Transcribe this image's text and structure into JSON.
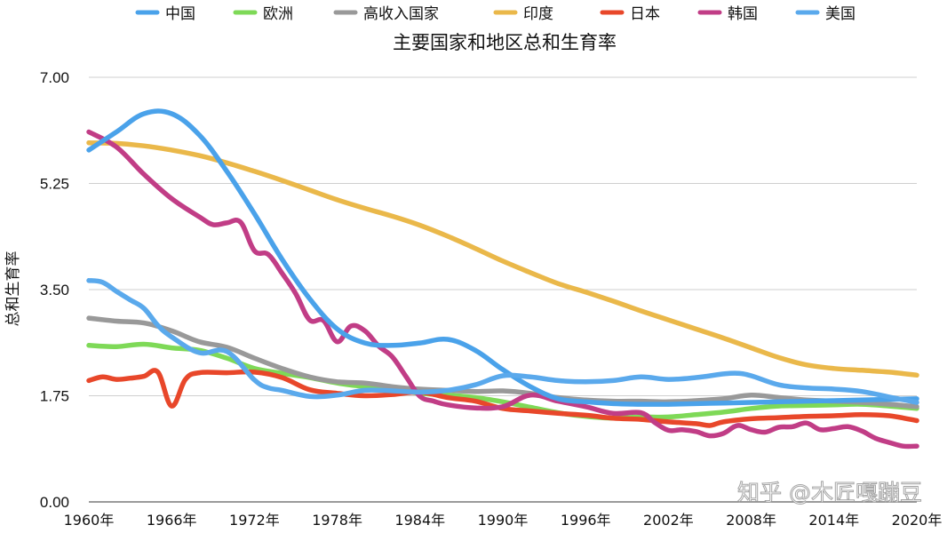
{
  "chart_data": {
    "type": "line",
    "title": "主要国家和地区总和生育率",
    "ylabel": "总和生育率",
    "xlabel": "",
    "ylim": [
      0,
      7
    ],
    "yticks": [
      "0.00",
      "1.75",
      "3.50",
      "5.25",
      "7.00"
    ],
    "ytick_values": [
      0,
      1.75,
      3.5,
      5.25,
      7
    ],
    "xlim": [
      1960,
      2020
    ],
    "xticks": [
      "1960年",
      "1966年",
      "1972年",
      "1978年",
      "1984年",
      "1990年",
      "1996年",
      "2002年",
      "2008年",
      "2014年",
      "2020年"
    ],
    "xtick_values": [
      1960,
      1966,
      1972,
      1978,
      1984,
      1990,
      1996,
      2002,
      2008,
      2014,
      2020
    ],
    "grid": true,
    "legend_position": "top",
    "watermark": "知乎 @木匠嘎蹦豆",
    "series": [
      {
        "name": "欧洲",
        "color": "#7ed957",
        "x": [
          1960,
          1962,
          1964,
          1966,
          1968,
          1970,
          1972,
          1974,
          1976,
          1978,
          1980,
          1982,
          1984,
          1986,
          1988,
          1990,
          1992,
          1994,
          1996,
          1998,
          2000,
          2002,
          2004,
          2006,
          2008,
          2010,
          2012,
          2014,
          2016,
          2018,
          2020
        ],
        "values": [
          2.58,
          2.56,
          2.6,
          2.54,
          2.5,
          2.37,
          2.2,
          2.12,
          2.05,
          1.96,
          1.9,
          1.85,
          1.79,
          1.76,
          1.72,
          1.65,
          1.56,
          1.47,
          1.41,
          1.38,
          1.4,
          1.4,
          1.44,
          1.48,
          1.54,
          1.58,
          1.59,
          1.6,
          1.61,
          1.58,
          1.54
        ]
      },
      {
        "name": "高收入国家",
        "color": "#999999",
        "x": [
          1960,
          1962,
          1964,
          1966,
          1968,
          1970,
          1972,
          1974,
          1976,
          1978,
          1980,
          1982,
          1984,
          1986,
          1988,
          1990,
          1992,
          1994,
          1996,
          1998,
          2000,
          2002,
          2004,
          2006,
          2008,
          2010,
          2012,
          2014,
          2016,
          2018,
          2020
        ],
        "values": [
          3.03,
          2.98,
          2.95,
          2.82,
          2.64,
          2.55,
          2.37,
          2.2,
          2.06,
          1.98,
          1.96,
          1.9,
          1.86,
          1.84,
          1.82,
          1.83,
          1.79,
          1.72,
          1.68,
          1.66,
          1.66,
          1.65,
          1.67,
          1.7,
          1.76,
          1.72,
          1.68,
          1.66,
          1.64,
          1.61,
          1.57
        ]
      },
      {
        "name": "印度",
        "color": "#eab84a",
        "x": [
          1960,
          1962,
          1964,
          1966,
          1968,
          1970,
          1972,
          1974,
          1976,
          1978,
          1980,
          1982,
          1984,
          1986,
          1988,
          1990,
          1992,
          1994,
          1996,
          1998,
          2000,
          2002,
          2004,
          2006,
          2008,
          2010,
          2012,
          2014,
          2016,
          2018,
          2020
        ],
        "values": [
          5.92,
          5.91,
          5.87,
          5.8,
          5.71,
          5.59,
          5.45,
          5.3,
          5.14,
          4.98,
          4.84,
          4.71,
          4.56,
          4.38,
          4.18,
          3.97,
          3.78,
          3.6,
          3.46,
          3.31,
          3.15,
          3.0,
          2.85,
          2.7,
          2.54,
          2.38,
          2.26,
          2.2,
          2.17,
          2.14,
          2.09
        ]
      },
      {
        "name": "日本",
        "color": "#e8472a",
        "x": [
          1960,
          1961,
          1962,
          1963,
          1964,
          1965,
          1966,
          1967,
          1968,
          1970,
          1972,
          1974,
          1976,
          1978,
          1980,
          1982,
          1984,
          1986,
          1988,
          1990,
          1992,
          1994,
          1996,
          1998,
          2000,
          2002,
          2004,
          2005,
          2006,
          2008,
          2010,
          2012,
          2014,
          2016,
          2018,
          2020
        ],
        "values": [
          2.0,
          2.06,
          2.02,
          2.04,
          2.07,
          2.14,
          1.58,
          2.02,
          2.13,
          2.13,
          2.14,
          2.05,
          1.85,
          1.79,
          1.75,
          1.77,
          1.81,
          1.72,
          1.66,
          1.54,
          1.5,
          1.46,
          1.43,
          1.38,
          1.36,
          1.32,
          1.29,
          1.26,
          1.32,
          1.37,
          1.39,
          1.41,
          1.42,
          1.44,
          1.42,
          1.34
        ]
      },
      {
        "name": "韩国",
        "color": "#c13d86",
        "x": [
          1960,
          1962,
          1964,
          1966,
          1968,
          1969,
          1970,
          1971,
          1972,
          1973,
          1974,
          1975,
          1976,
          1977,
          1978,
          1979,
          1980,
          1981,
          1982,
          1983,
          1984,
          1985,
          1986,
          1988,
          1990,
          1992,
          1994,
          1996,
          1998,
          2000,
          2001,
          2002,
          2003,
          2004,
          2005,
          2006,
          2007,
          2008,
          2009,
          2010,
          2011,
          2012,
          2013,
          2014,
          2015,
          2016,
          2017,
          2018,
          2019,
          2020
        ],
        "values": [
          6.1,
          5.85,
          5.4,
          5.0,
          4.7,
          4.57,
          4.6,
          4.61,
          4.14,
          4.08,
          3.77,
          3.43,
          3.0,
          2.99,
          2.64,
          2.9,
          2.82,
          2.57,
          2.39,
          2.06,
          1.74,
          1.66,
          1.6,
          1.55,
          1.57,
          1.76,
          1.66,
          1.57,
          1.46,
          1.47,
          1.31,
          1.18,
          1.19,
          1.16,
          1.09,
          1.13,
          1.26,
          1.19,
          1.15,
          1.23,
          1.24,
          1.3,
          1.19,
          1.21,
          1.24,
          1.17,
          1.05,
          0.98,
          0.92,
          0.92
        ]
      },
      {
        "name": "中国",
        "color": "#4aa2ea",
        "x": [
          1960,
          1962,
          1964,
          1966,
          1968,
          1970,
          1972,
          1974,
          1976,
          1978,
          1980,
          1982,
          1984,
          1986,
          1988,
          1990,
          1992,
          1994,
          1996,
          1998,
          2000,
          2002,
          2004,
          2006,
          2008,
          2010,
          2012,
          2014,
          2016,
          2018,
          2020
        ],
        "values": [
          5.8,
          6.1,
          6.4,
          6.4,
          6.05,
          5.45,
          4.75,
          4.0,
          3.35,
          2.85,
          2.62,
          2.58,
          2.62,
          2.68,
          2.5,
          2.18,
          1.9,
          1.7,
          1.65,
          1.62,
          1.61,
          1.61,
          1.62,
          1.63,
          1.64,
          1.65,
          1.66,
          1.67,
          1.68,
          1.69,
          1.7
        ]
      },
      {
        "name": "美国",
        "color": "#5aa9ec",
        "x": [
          1960,
          1961,
          1962,
          1963,
          1964,
          1965,
          1966,
          1968,
          1970,
          1972,
          1973,
          1974,
          1976,
          1978,
          1980,
          1982,
          1984,
          1986,
          1988,
          1990,
          1992,
          1994,
          1996,
          1998,
          2000,
          2002,
          2004,
          2006,
          2007,
          2008,
          2010,
          2012,
          2014,
          2016,
          2018,
          2020
        ],
        "values": [
          3.65,
          3.62,
          3.47,
          3.33,
          3.19,
          2.91,
          2.72,
          2.46,
          2.48,
          2.01,
          1.88,
          1.84,
          1.74,
          1.76,
          1.84,
          1.83,
          1.81,
          1.84,
          1.93,
          2.08,
          2.06,
          2.0,
          1.98,
          2.0,
          2.06,
          2.02,
          2.05,
          2.11,
          2.12,
          2.08,
          1.93,
          1.88,
          1.86,
          1.82,
          1.73,
          1.64
        ]
      }
    ]
  },
  "legend": [
    {
      "name": "中国",
      "color": "#4aa2ea"
    },
    {
      "name": "欧洲",
      "color": "#7ed957"
    },
    {
      "name": "高收入国家",
      "color": "#999999"
    },
    {
      "name": "印度",
      "color": "#eab84a"
    },
    {
      "name": "日本",
      "color": "#e8472a"
    },
    {
      "name": "韩国",
      "color": "#c13d86"
    },
    {
      "name": "美国",
      "color": "#5aa9ec"
    }
  ]
}
